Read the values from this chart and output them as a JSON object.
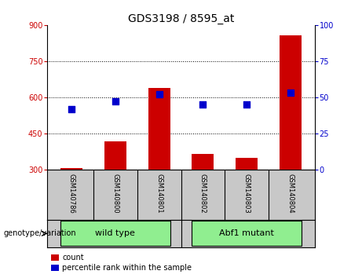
{
  "title": "GDS3198 / 8595_at",
  "samples": [
    "GSM140786",
    "GSM140800",
    "GSM140801",
    "GSM140802",
    "GSM140803",
    "GSM140804"
  ],
  "count_values": [
    307,
    418,
    638,
    365,
    350,
    858
  ],
  "percentile_values": [
    42,
    47,
    52,
    45,
    45,
    53
  ],
  "ylim_left": [
    300,
    900
  ],
  "ylim_right": [
    0,
    100
  ],
  "yticks_left": [
    300,
    450,
    600,
    750,
    900
  ],
  "yticks_right": [
    0,
    25,
    50,
    75,
    100
  ],
  "bar_color": "#cc0000",
  "dot_color": "#0000cc",
  "groups": [
    {
      "label": "wild type",
      "start": 0,
      "end": 2
    },
    {
      "label": "Abf1 mutant",
      "start": 3,
      "end": 5
    }
  ],
  "genotype_label": "genotype/variation",
  "legend_count_label": "count",
  "legend_pct_label": "percentile rank within the sample",
  "x_positions": [
    0,
    1,
    2,
    3,
    4,
    5
  ],
  "bar_width": 0.5,
  "bg_color": "#ffffff",
  "plot_bg": "#ffffff",
  "tick_label_color_left": "#cc0000",
  "tick_label_color_right": "#0000cc",
  "title_fontsize": 10,
  "axis_fontsize": 7,
  "sample_fontsize": 6,
  "group_fontsize": 8,
  "legend_fontsize": 7,
  "genotype_fontsize": 7,
  "dot_size": 35,
  "grid_ticks": [
    450,
    600,
    750
  ],
  "sample_panel_color": "#c8c8c8",
  "group_panel_color": "#c8c8c8",
  "group_box_color": "#90ee90"
}
